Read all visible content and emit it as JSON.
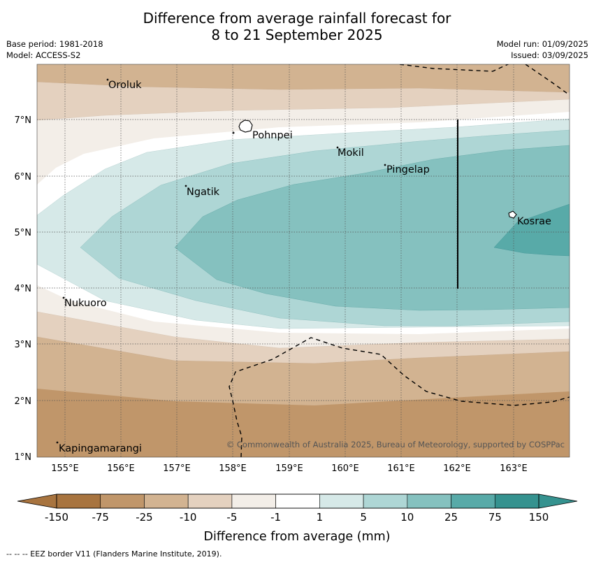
{
  "title": {
    "line1": "Difference from average rainfall forecast for",
    "line2": "8 to 21 September 2025"
  },
  "meta": {
    "base_period": "Base period: 1981-2018",
    "model": "Model: ACCESS-S2",
    "model_run": "Model run: 01/09/2025",
    "issued": "Issued: 03/09/2025"
  },
  "axes": {
    "lon_labels": [
      "155°E",
      "156°E",
      "157°E",
      "158°E",
      "159°E",
      "160°E",
      "161°E",
      "162°E",
      "163°E"
    ],
    "lat_labels": [
      "7°N",
      "6°N",
      "5°N",
      "4°N",
      "3°N",
      "2°N",
      "1°N"
    ]
  },
  "places": [
    "Oroluk",
    "Pohnpei",
    "Mokil",
    "Pingelap",
    "Ngatik",
    "Kosrae",
    "Nukuoro",
    "Kapingamarangi"
  ],
  "copyright": "© Commonwealth of Australia 2025, Bureau of Meteorology, supported by COSPPac",
  "colorbar": {
    "ticks": [
      "-150",
      "-75",
      "-25",
      "-10",
      "-5",
      "-1",
      "1",
      "5",
      "10",
      "25",
      "75",
      "150"
    ],
    "colors": [
      "#a8743f",
      "#c0966a",
      "#d2b391",
      "#e4d1bf",
      "#f3eee8",
      "#ffffff",
      "#d6e9e8",
      "#aed6d5",
      "#85c1bf",
      "#58aaa8",
      "#35928f"
    ],
    "label": "Difference from average (mm)"
  },
  "footnote": "--  --  -- EEZ border V11 (Flanders Marine Institute, 2019)."
}
